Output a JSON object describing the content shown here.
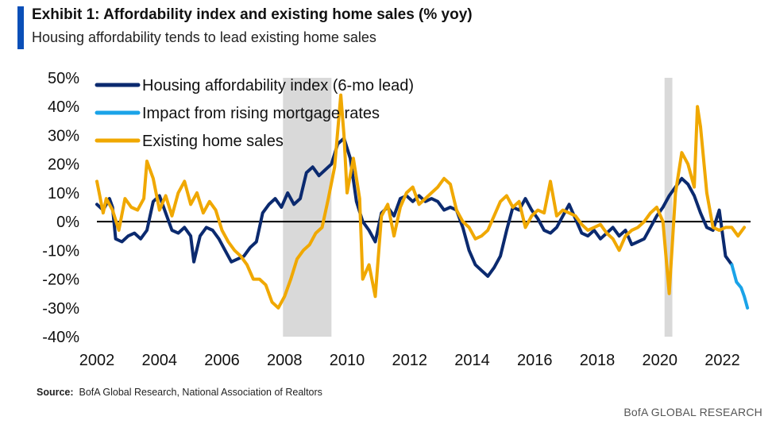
{
  "header": {
    "title": "Exhibit 1: Affordability index and existing home sales (% yoy)",
    "subtitle": "Housing affordability tends to lead existing home sales",
    "accent_color": "#0a4fb8"
  },
  "footer": {
    "source_label": "Source:",
    "source_text": "BofA Global Research, National Association of Realtors",
    "brand": "BofA GLOBAL RESEARCH"
  },
  "chart_data": {
    "type": "line",
    "x_unit": "year",
    "xlim": [
      2002.0,
      2022.9
    ],
    "ylim": [
      -40,
      50
    ],
    "y_ticks": [
      50,
      40,
      30,
      20,
      10,
      0,
      -10,
      -20,
      -30,
      -40
    ],
    "y_tick_labels": [
      "50%",
      "40%",
      "30%",
      "20%",
      "10%",
      "0%",
      "-10%",
      "-20%",
      "-30%",
      "-40%"
    ],
    "x_ticks": [
      2002,
      2004,
      2006,
      2008,
      2010,
      2012,
      2014,
      2016,
      2018,
      2020,
      2022
    ],
    "x_tick_labels": [
      "2002",
      "2004",
      "2006",
      "2008",
      "2010",
      "2012",
      "2014",
      "2016",
      "2018",
      "2020",
      "2022"
    ],
    "grid": false,
    "zero_line": true,
    "legend_placement": "top-left",
    "shaded_periods": [
      {
        "start": 2007.95,
        "end": 2009.5,
        "color": "#d9d9d9"
      },
      {
        "start": 2020.15,
        "end": 2020.4,
        "color": "#d9d9d9"
      }
    ],
    "series": [
      {
        "name": "Housing affordability index (6-mo lead)",
        "color": "#0b2a6f",
        "x": [
          2002.0,
          2002.2,
          2002.4,
          2002.5,
          2002.6,
          2002.8,
          2003.0,
          2003.2,
          2003.4,
          2003.6,
          2003.8,
          2004.0,
          2004.2,
          2004.4,
          2004.6,
          2004.8,
          2005.0,
          2005.1,
          2005.3,
          2005.5,
          2005.7,
          2005.9,
          2006.1,
          2006.3,
          2006.5,
          2006.7,
          2006.9,
          2007.1,
          2007.3,
          2007.5,
          2007.7,
          2007.9,
          2008.1,
          2008.3,
          2008.5,
          2008.7,
          2008.9,
          2009.1,
          2009.3,
          2009.5,
          2009.7,
          2009.9,
          2010.1,
          2010.3,
          2010.5,
          2010.7,
          2010.9,
          2011.1,
          2011.3,
          2011.5,
          2011.7,
          2011.9,
          2012.1,
          2012.3,
          2012.5,
          2012.7,
          2012.9,
          2013.1,
          2013.3,
          2013.5,
          2013.7,
          2013.9,
          2014.1,
          2014.3,
          2014.5,
          2014.7,
          2014.9,
          2015.1,
          2015.3,
          2015.5,
          2015.7,
          2015.9,
          2016.1,
          2016.3,
          2016.5,
          2016.7,
          2016.9,
          2017.1,
          2017.3,
          2017.5,
          2017.7,
          2017.9,
          2018.1,
          2018.3,
          2018.5,
          2018.7,
          2018.9,
          2019.1,
          2019.3,
          2019.5,
          2019.7,
          2019.9,
          2020.1,
          2020.3,
          2020.5,
          2020.7,
          2020.9,
          2021.1,
          2021.3,
          2021.5,
          2021.7,
          2021.9,
          2022.1,
          2022.3
        ],
        "y": [
          6,
          4,
          8,
          5,
          -6,
          -7,
          -5,
          -4,
          -6,
          -3,
          7,
          9,
          3,
          -3,
          -4,
          -2,
          -5,
          -14,
          -5,
          -2,
          -3,
          -6,
          -10,
          -14,
          -13,
          -12,
          -9,
          -7,
          3,
          6,
          8,
          5,
          10,
          6,
          8,
          17,
          19,
          16,
          18,
          20,
          27,
          29,
          22,
          7,
          0,
          -3,
          -7,
          3,
          5,
          2,
          8,
          9,
          7,
          9,
          7,
          8,
          7,
          4,
          5,
          4,
          -2,
          -10,
          -15,
          -17,
          -19,
          -16,
          -12,
          -3,
          5,
          4,
          8,
          4,
          1,
          -3,
          -4,
          -2,
          2,
          6,
          1,
          -4,
          -5,
          -3,
          -6,
          -4,
          -2,
          -5,
          -3,
          -8,
          -7,
          -6,
          -2,
          2,
          5,
          9,
          12,
          15,
          13,
          9,
          3,
          -2,
          -3,
          4,
          -12,
          -15
        ],
        "line_width": 4
      },
      {
        "name": "Impact from rising mortgage rates",
        "color": "#1aa3e8",
        "x": [
          2022.3,
          2022.45,
          2022.6,
          2022.7,
          2022.8
        ],
        "y": [
          -15,
          -21,
          -23,
          -26,
          -30
        ],
        "line_width": 4
      },
      {
        "name": "Existing home sales",
        "color": "#f0a800",
        "x": [
          2002.0,
          2002.2,
          2002.3,
          2002.5,
          2002.7,
          2002.9,
          2003.1,
          2003.3,
          2003.5,
          2003.6,
          2003.8,
          2004.0,
          2004.2,
          2004.4,
          2004.6,
          2004.8,
          2005.0,
          2005.2,
          2005.4,
          2005.6,
          2005.8,
          2006.0,
          2006.2,
          2006.4,
          2006.6,
          2006.8,
          2007.0,
          2007.2,
          2007.4,
          2007.6,
          2007.8,
          2008.0,
          2008.2,
          2008.4,
          2008.6,
          2008.8,
          2009.0,
          2009.2,
          2009.4,
          2009.6,
          2009.8,
          2009.9,
          2010.0,
          2010.2,
          2010.4,
          2010.5,
          2010.7,
          2010.9,
          2011.1,
          2011.3,
          2011.5,
          2011.7,
          2011.9,
          2012.1,
          2012.3,
          2012.5,
          2012.7,
          2012.9,
          2013.1,
          2013.3,
          2013.5,
          2013.7,
          2013.9,
          2014.1,
          2014.3,
          2014.5,
          2014.7,
          2014.9,
          2015.1,
          2015.3,
          2015.5,
          2015.7,
          2015.9,
          2016.1,
          2016.3,
          2016.5,
          2016.7,
          2016.9,
          2017.1,
          2017.3,
          2017.5,
          2017.7,
          2017.9,
          2018.1,
          2018.3,
          2018.5,
          2018.7,
          2018.9,
          2019.1,
          2019.3,
          2019.5,
          2019.7,
          2019.9,
          2020.1,
          2020.3,
          2020.5,
          2020.7,
          2020.9,
          2021.1,
          2021.2,
          2021.3,
          2021.5,
          2021.7,
          2021.9,
          2022.1,
          2022.3,
          2022.5,
          2022.7
        ],
        "y": [
          14,
          3,
          8,
          4,
          -3,
          8,
          5,
          4,
          8,
          21,
          15,
          4,
          9,
          2,
          10,
          14,
          6,
          10,
          3,
          7,
          4,
          -3,
          -7,
          -10,
          -12,
          -15,
          -20,
          -20,
          -22,
          -28,
          -30,
          -26,
          -20,
          -13,
          -10,
          -8,
          -4,
          -2,
          8,
          19,
          44,
          30,
          10,
          22,
          8,
          -20,
          -15,
          -26,
          2,
          6,
          -5,
          5,
          10,
          12,
          6,
          8,
          10,
          12,
          15,
          13,
          4,
          0,
          -2,
          -6,
          -5,
          -3,
          2,
          7,
          9,
          5,
          7,
          -2,
          2,
          4,
          3,
          14,
          2,
          4,
          3,
          2,
          -1,
          -3,
          -2,
          -1,
          -4,
          -6,
          -10,
          -5,
          -3,
          -2,
          0,
          3,
          5,
          0,
          -25,
          10,
          24,
          20,
          12,
          40,
          33,
          10,
          -2,
          -3,
          -2,
          -2,
          -5,
          -2
        ],
        "line_width": 4
      }
    ]
  }
}
